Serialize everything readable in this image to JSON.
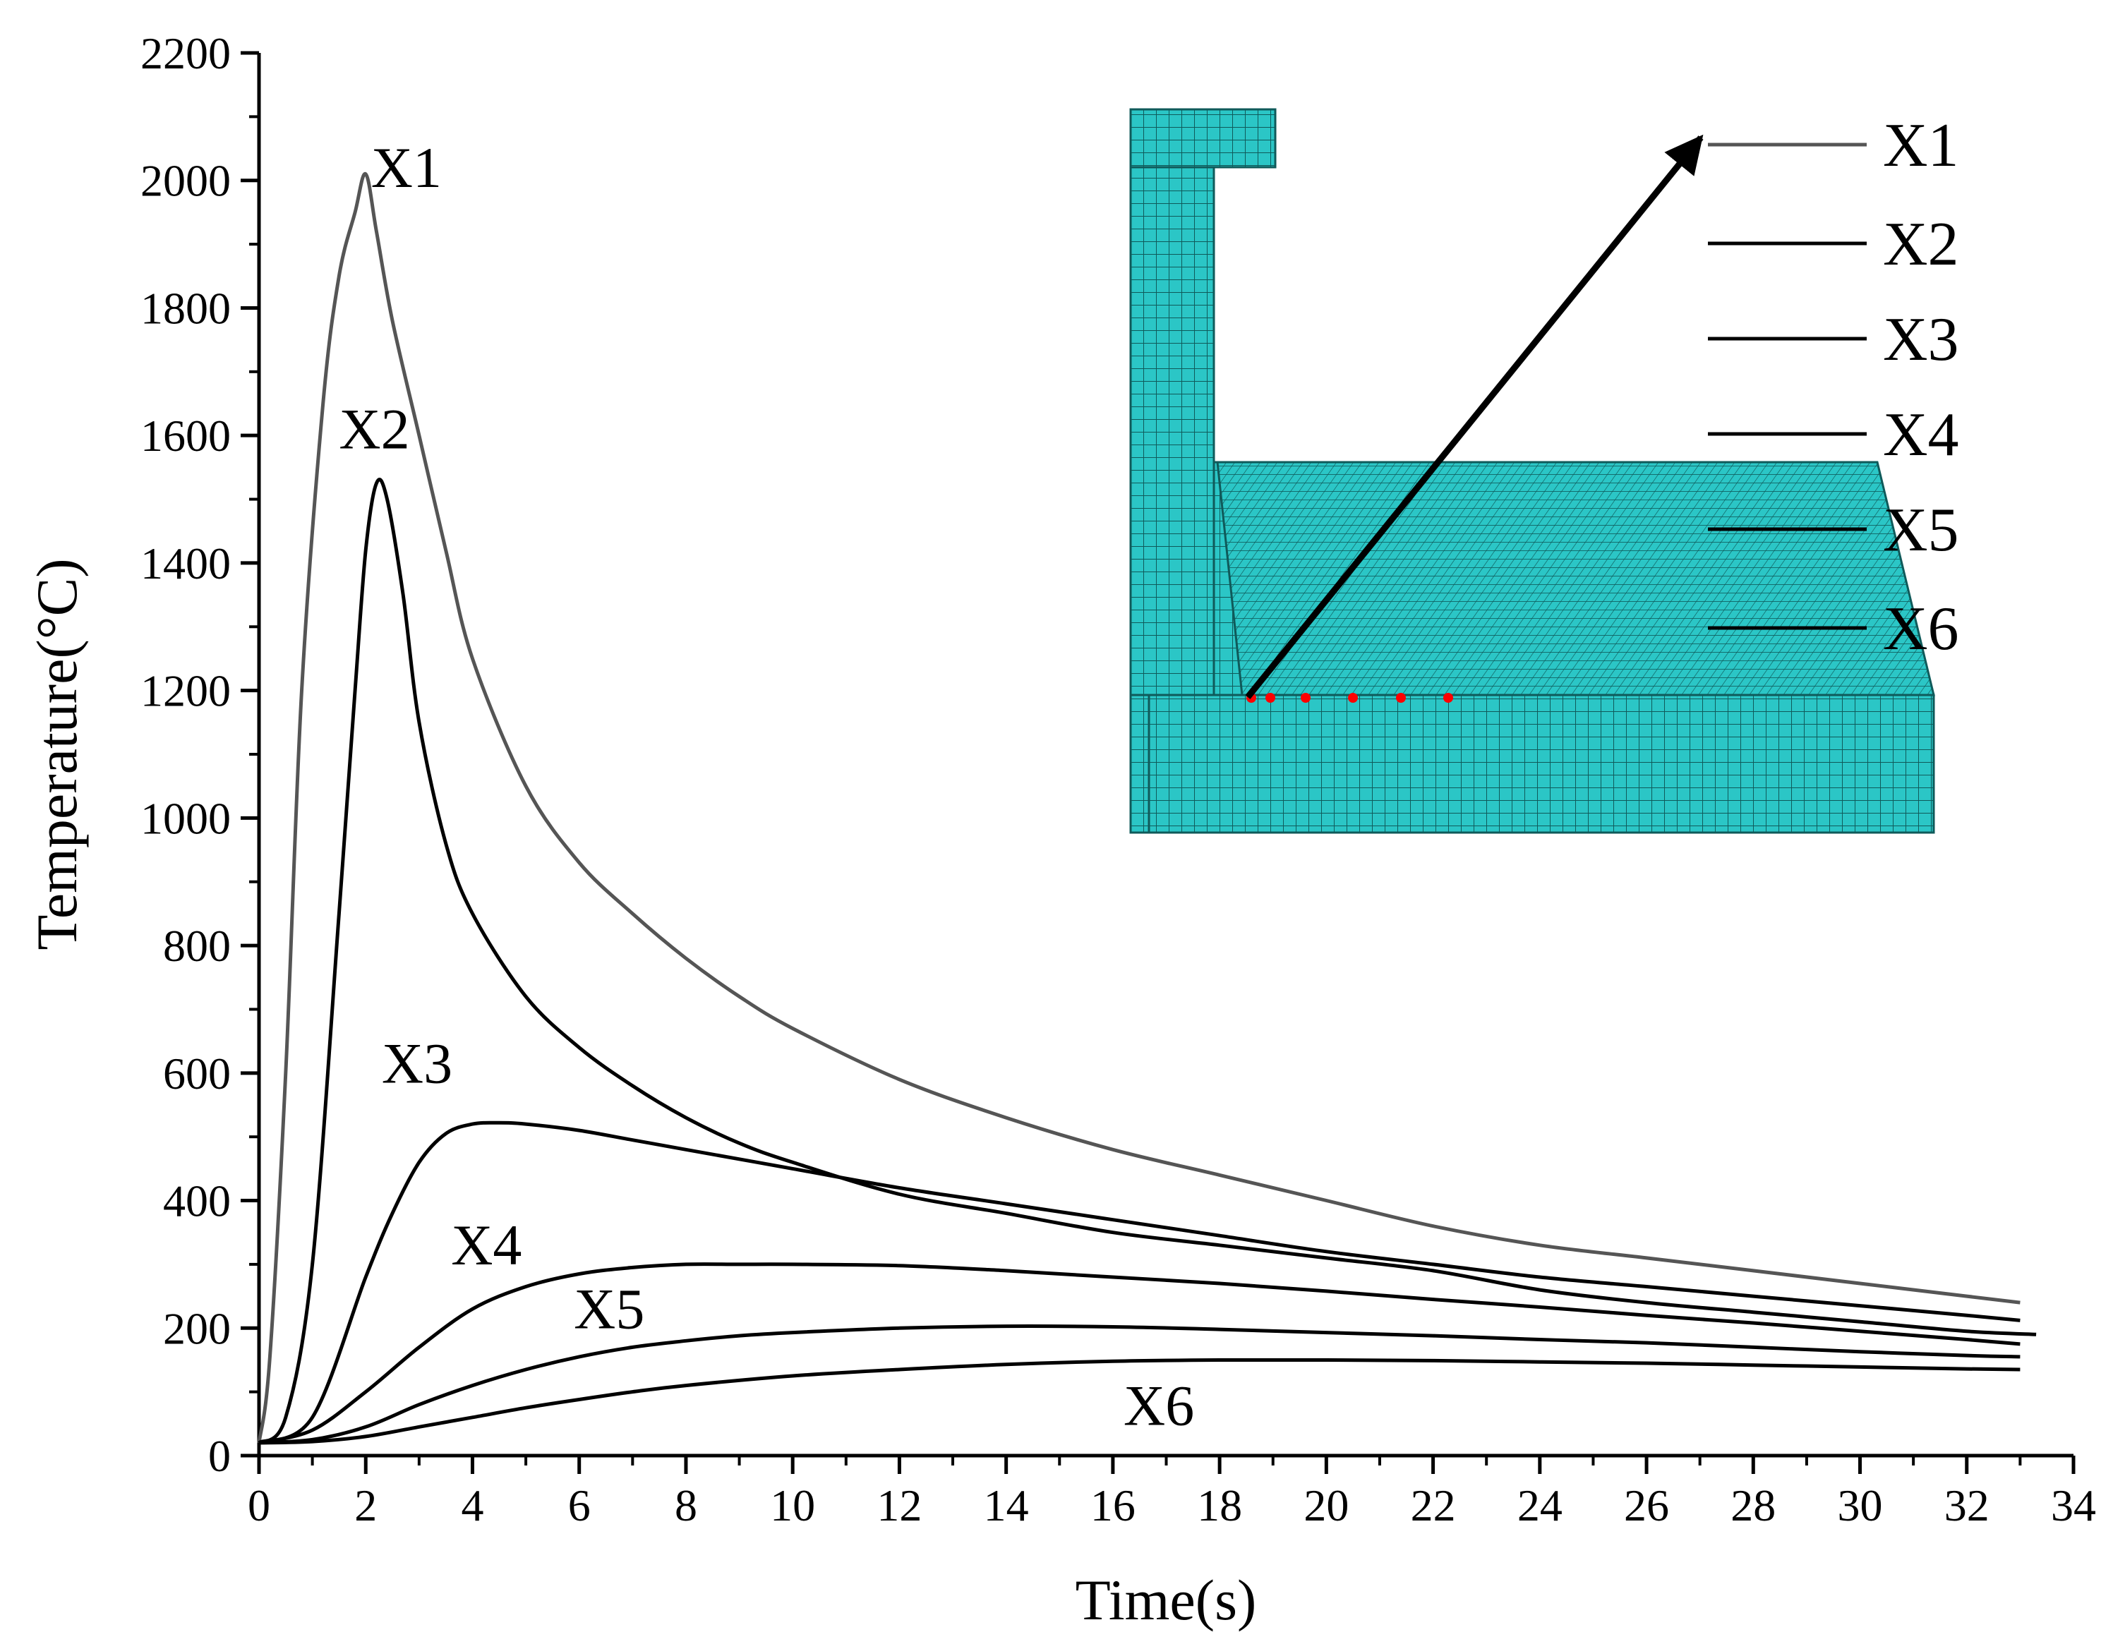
{
  "chart_data": {
    "type": "line",
    "xlabel": "Time(s)",
    "ylabel": "Temperature(°C)",
    "xlim": [
      0,
      34
    ],
    "ylim": [
      0,
      2200
    ],
    "xticks": [
      "0",
      "2",
      "4",
      "6",
      "8",
      "10",
      "12",
      "14",
      "16",
      "18",
      "20",
      "22",
      "24",
      "26",
      "28",
      "30",
      "32",
      "34"
    ],
    "yticks": [
      "0",
      "200",
      "400",
      "600",
      "800",
      "1000",
      "1200",
      "1400",
      "1600",
      "1800",
      "2000",
      "2200"
    ],
    "grid": false,
    "legend": "top-right",
    "series": [
      {
        "name": "X1",
        "color": "#555555",
        "x": [
          0,
          0.2,
          0.5,
          0.8,
          1.2,
          1.5,
          1.8,
          2.0,
          2.2,
          2.5,
          3.0,
          3.5,
          4.0,
          5.0,
          6.0,
          7.0,
          8.0,
          9.0,
          10.0,
          12.0,
          14.0,
          16.0,
          18.0,
          20.0,
          22.0,
          24.0,
          26.0,
          28.0,
          30.0,
          32.0,
          33.0
        ],
        "y": [
          20,
          150,
          600,
          1200,
          1650,
          1850,
          1950,
          2010,
          1920,
          1780,
          1600,
          1420,
          1250,
          1050,
          930,
          850,
          780,
          720,
          670,
          590,
          530,
          480,
          440,
          400,
          360,
          330,
          310,
          290,
          270,
          250,
          240
        ]
      },
      {
        "name": "X2",
        "color": "#000000",
        "x": [
          0,
          0.5,
          1.0,
          1.5,
          1.8,
          2.0,
          2.2,
          2.4,
          2.7,
          3.0,
          3.5,
          4.0,
          5.0,
          6.0,
          7.0,
          8.0,
          9.0,
          10.0,
          12.0,
          14.0,
          16.0,
          18.0,
          20.0,
          22.0,
          24.0,
          26.0,
          28.0,
          30.0,
          32.0,
          33.3
        ],
        "y": [
          20,
          60,
          300,
          850,
          1200,
          1420,
          1525,
          1500,
          1350,
          1150,
          960,
          850,
          720,
          640,
          580,
          530,
          490,
          460,
          410,
          380,
          350,
          330,
          310,
          290,
          260,
          240,
          225,
          210,
          195,
          190
        ]
      },
      {
        "name": "X3",
        "color": "#000000",
        "x": [
          0,
          1.0,
          2.0,
          2.5,
          3.0,
          3.5,
          4.0,
          4.5,
          5.0,
          6.0,
          7.0,
          8.0,
          10.0,
          12.0,
          14.0,
          16.0,
          18.0,
          20.0,
          22.0,
          24.0,
          26.0,
          28.0,
          30.0,
          32.0,
          33.0
        ],
        "y": [
          20,
          60,
          280,
          380,
          460,
          505,
          520,
          522,
          520,
          510,
          495,
          480,
          450,
          420,
          395,
          370,
          345,
          320,
          300,
          280,
          265,
          250,
          235,
          220,
          212
        ]
      },
      {
        "name": "X4",
        "color": "#000000",
        "x": [
          0,
          1.0,
          2.0,
          3.0,
          4.0,
          5.0,
          6.0,
          7.0,
          8.0,
          9.0,
          10.0,
          12.0,
          14.0,
          16.0,
          18.0,
          20.0,
          22.0,
          24.0,
          26.0,
          28.0,
          30.0,
          32.0,
          33.0
        ],
        "y": [
          20,
          40,
          100,
          170,
          230,
          265,
          285,
          295,
          300,
          300,
          300,
          298,
          290,
          280,
          270,
          258,
          245,
          233,
          220,
          208,
          195,
          182,
          175
        ]
      },
      {
        "name": "X5",
        "color": "#000000",
        "x": [
          0,
          1.0,
          2.0,
          3.0,
          4.0,
          5.0,
          6.0,
          7.0,
          8.0,
          9.0,
          10.0,
          12.0,
          14.0,
          16.0,
          18.0,
          20.0,
          22.0,
          24.0,
          26.0,
          28.0,
          30.0,
          32.0,
          33.0
        ],
        "y": [
          20,
          25,
          45,
          80,
          110,
          135,
          155,
          170,
          180,
          188,
          193,
          200,
          203,
          202,
          198,
          193,
          188,
          182,
          177,
          170,
          163,
          157,
          155
        ]
      },
      {
        "name": "X6",
        "color": "#000000",
        "x": [
          0,
          1.0,
          2.0,
          3.0,
          4.0,
          5.0,
          6.0,
          7.0,
          8.0,
          10.0,
          12.0,
          14.0,
          16.0,
          18.0,
          20.0,
          22.0,
          24.0,
          26.0,
          28.0,
          30.0,
          32.0,
          33.0
        ],
        "y": [
          20,
          22,
          30,
          45,
          60,
          75,
          88,
          100,
          110,
          125,
          135,
          143,
          148,
          150,
          150,
          149,
          147,
          145,
          142,
          139,
          136,
          135
        ]
      }
    ],
    "annotations": [
      {
        "text": "X1",
        "x": 2.1,
        "y": 1990
      },
      {
        "text": "X2",
        "x": 1.5,
        "y": 1580
      },
      {
        "text": "X3",
        "x": 2.3,
        "y": 585
      },
      {
        "text": "X4",
        "x": 3.6,
        "y": 300
      },
      {
        "text": "X5",
        "x": 5.9,
        "y": 200
      },
      {
        "text": "X6",
        "x": 16.2,
        "y": 48
      }
    ],
    "inset": {
      "mesh_color": "#2bc6c6",
      "point_color": "#ff0000",
      "arrow_color": "#000000",
      "n_points": 6
    }
  }
}
